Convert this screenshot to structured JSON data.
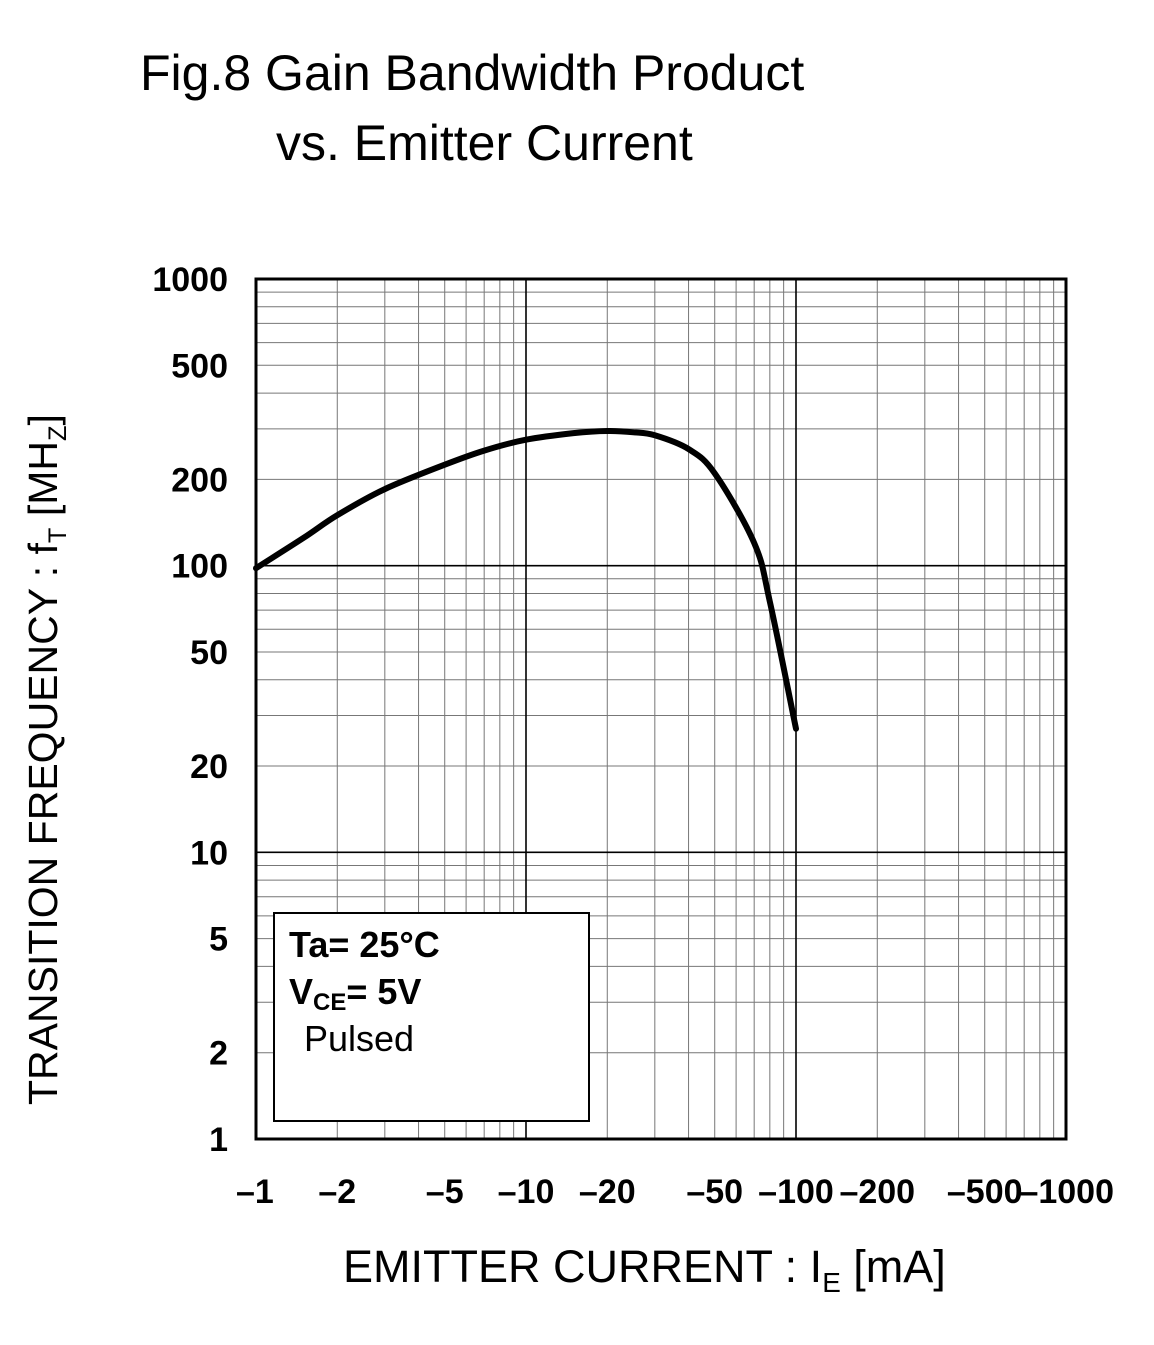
{
  "chart_data": {
    "type": "line",
    "title": "Fig.8 Gain Bandwidth Product",
    "subtitle": "vs. Emitter Current",
    "xlabel": {
      "main": "EMITTER CURRENT : I",
      "sub": "E",
      "unit": " [mA]"
    },
    "ylabel": {
      "main": "TRANSITION FREQUENCY : f",
      "sub": "T",
      "unit": " [MH",
      "unit_sub": "Z",
      "unit_end": "]"
    },
    "x_scale": "log",
    "y_scale": "log",
    "xlim": [
      -1,
      -1000
    ],
    "ylim": [
      1,
      1000
    ],
    "x_ticks": [
      {
        "value": -1,
        "label": "–1"
      },
      {
        "value": -2,
        "label": "–2"
      },
      {
        "value": -5,
        "label": "–5"
      },
      {
        "value": -10,
        "label": "–10"
      },
      {
        "value": -20,
        "label": "–20"
      },
      {
        "value": -50,
        "label": "–50"
      },
      {
        "value": -100,
        "label": "–100"
      },
      {
        "value": -200,
        "label": "–200"
      },
      {
        "value": -500,
        "label": "–500"
      },
      {
        "value": -1000,
        "label": "–1000"
      }
    ],
    "y_ticks": [
      {
        "value": 1000,
        "label": "1000"
      },
      {
        "value": 500,
        "label": "500"
      },
      {
        "value": 200,
        "label": "200"
      },
      {
        "value": 100,
        "label": "100"
      },
      {
        "value": 50,
        "label": "50"
      },
      {
        "value": 20,
        "label": "20"
      },
      {
        "value": 10,
        "label": "10"
      },
      {
        "value": 5,
        "label": "5"
      },
      {
        "value": 2,
        "label": "2"
      },
      {
        "value": 1,
        "label": "1"
      }
    ],
    "grid": true,
    "annotation": {
      "ta": "Ta= 25°C",
      "vce_main": "V",
      "vce_sub": "CE",
      "vce_rest": "= 5V",
      "pulsed": "Pulsed"
    },
    "series": [
      {
        "x": [
          -1,
          -1.5,
          -2,
          -3,
          -5,
          -7,
          -10,
          -15,
          -20,
          -25,
          -30,
          -40,
          -50,
          -70,
          -80,
          -100
        ],
        "y": [
          98,
          125,
          150,
          185,
          225,
          252,
          275,
          290,
          295,
          292,
          285,
          255,
          210,
          120,
          75,
          27
        ]
      }
    ]
  }
}
